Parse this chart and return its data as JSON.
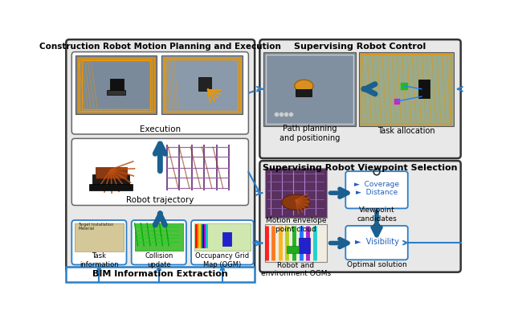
{
  "left_panel_title": "Construction Robot Motion Planning and Execution",
  "top_right_title": "Supervising Robot Control",
  "bottom_right_title": "Supervising Robot Viewpoint Selection",
  "bim_label": "BIM Information Extraction",
  "execution_label": "Execution",
  "robot_traj_label": "Robot trajectory",
  "task_info_label": "Task\ninformation",
  "collision_label": "Collision\nupdate",
  "ogm_label": "Occupancy Grid\nMap (OGM)",
  "path_planning_label": "Path planning\nand positioning",
  "task_alloc_label": "Task allocation",
  "motion_env_label": "Motion envelope\npoint cloud",
  "viewpoint_cand_label": "Viewpoint\ncandidates",
  "robot_env_ogm_label": "Robot and\nenvironment OGMs",
  "optimal_label": "Optimal solution",
  "coverage_label": "►  Coverage\n►  Distance",
  "visibility_label": "►  Visibility",
  "light_gray": "#e8e8e8",
  "dark_border": "#333333",
  "blue_arrow": "#1f6fa8",
  "steel_blue": "#2e7fad",
  "white": "#ffffff",
  "img_gray1": "#8a9aaa",
  "img_gray2": "#9aaabb",
  "orange_line": "#e8960a"
}
